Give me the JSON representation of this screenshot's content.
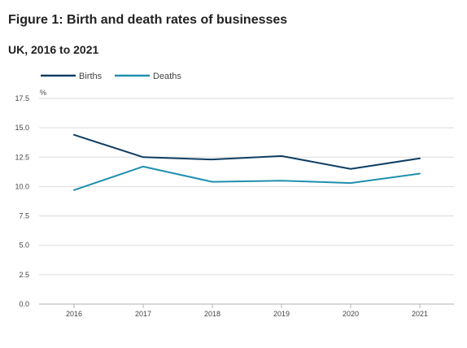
{
  "chart_data": {
    "type": "line",
    "title": "Figure 1: Birth and death rates of businesses",
    "subtitle": "UK, 2016 to 2021",
    "ylabel": "%",
    "xlabel": "",
    "categories": [
      "2016",
      "2017",
      "2018",
      "2019",
      "2020",
      "2021"
    ],
    "y_ticks": [
      "0.0",
      "2.5",
      "5.0",
      "7.5",
      "10.0",
      "12.5",
      "15.0",
      "17.5"
    ],
    "ylim": [
      0,
      17.5
    ],
    "grid": true,
    "legend_position": "top-left",
    "series": [
      {
        "name": "Births",
        "color": "#0f3e63",
        "values": [
          14.4,
          12.5,
          12.3,
          12.6,
          11.5,
          12.4
        ]
      },
      {
        "name": "Deaths",
        "color": "#1f8fae",
        "values": [
          9.7,
          11.7,
          10.4,
          10.5,
          10.3,
          11.1
        ]
      }
    ]
  }
}
